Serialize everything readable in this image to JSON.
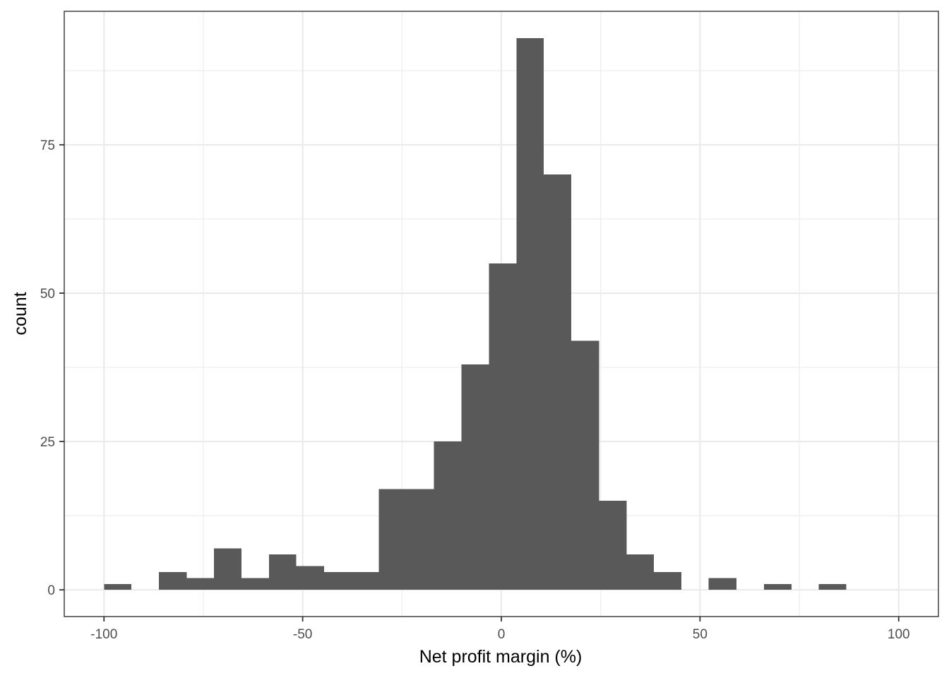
{
  "chart_data": {
    "type": "histogram",
    "xlabel": "Net profit margin (%)",
    "ylabel": "count",
    "xlim": [
      -110,
      110
    ],
    "ylim": [
      -4.5,
      97.5
    ],
    "x_ticks": [
      -100,
      -50,
      0,
      50,
      100
    ],
    "x_tick_labels": [
      "-100",
      "-50",
      "0",
      "50",
      "100"
    ],
    "x_minor_ticks": [
      -75,
      -25,
      25,
      75
    ],
    "y_ticks": [
      0,
      25,
      50,
      75
    ],
    "y_tick_labels": [
      "0",
      "25",
      "50",
      "75"
    ],
    "y_minor_ticks": [
      12.5,
      37.5,
      62.5,
      87.5
    ],
    "bar_color": "#595959",
    "grid": true,
    "bins": [
      {
        "x0": -100.0,
        "x1": -93.1,
        "count": 1
      },
      {
        "x0": -93.1,
        "x1": -86.2,
        "count": 0
      },
      {
        "x0": -86.2,
        "x1": -79.2,
        "count": 3
      },
      {
        "x0": -79.2,
        "x1": -72.3,
        "count": 2
      },
      {
        "x0": -72.3,
        "x1": -65.4,
        "count": 7
      },
      {
        "x0": -65.4,
        "x1": -58.5,
        "count": 2
      },
      {
        "x0": -58.5,
        "x1": -51.6,
        "count": 6
      },
      {
        "x0": -51.6,
        "x1": -44.6,
        "count": 4
      },
      {
        "x0": -44.6,
        "x1": -37.7,
        "count": 3
      },
      {
        "x0": -37.7,
        "x1": -30.8,
        "count": 3
      },
      {
        "x0": -30.8,
        "x1": -23.9,
        "count": 17
      },
      {
        "x0": -23.9,
        "x1": -17.0,
        "count": 17
      },
      {
        "x0": -17.0,
        "x1": -10.0,
        "count": 25
      },
      {
        "x0": -10.0,
        "x1": -3.1,
        "count": 38
      },
      {
        "x0": -3.1,
        "x1": 3.8,
        "count": 55
      },
      {
        "x0": 3.8,
        "x1": 10.7,
        "count": 93
      },
      {
        "x0": 10.7,
        "x1": 17.6,
        "count": 70
      },
      {
        "x0": 17.6,
        "x1": 24.6,
        "count": 42
      },
      {
        "x0": 24.6,
        "x1": 31.5,
        "count": 15
      },
      {
        "x0": 31.5,
        "x1": 38.4,
        "count": 6
      },
      {
        "x0": 38.4,
        "x1": 45.3,
        "count": 3
      },
      {
        "x0": 45.3,
        "x1": 52.2,
        "count": 0
      },
      {
        "x0": 52.2,
        "x1": 59.2,
        "count": 2
      },
      {
        "x0": 59.2,
        "x1": 66.1,
        "count": 0
      },
      {
        "x0": 66.1,
        "x1": 73.0,
        "count": 1
      },
      {
        "x0": 73.0,
        "x1": 79.9,
        "count": 0
      },
      {
        "x0": 79.9,
        "x1": 86.8,
        "count": 1
      }
    ]
  }
}
